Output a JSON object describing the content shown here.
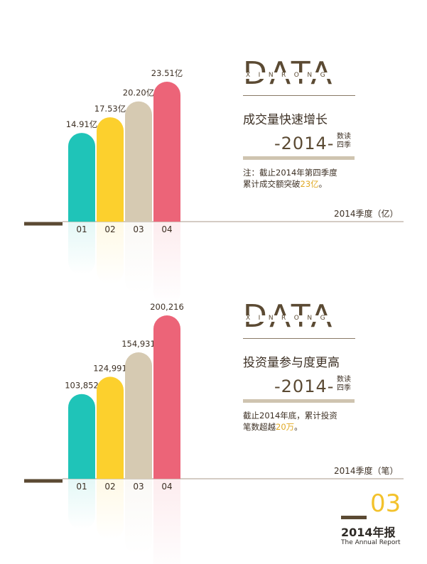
{
  "colors": {
    "teal": "#1fc4b8",
    "yellow": "#fcd02d",
    "beige": "#d6cab2",
    "pink": "#ec6478",
    "brown": "#5b4a33",
    "highlight": "#e0a924"
  },
  "chart_data": [
    {
      "type": "bar",
      "categories": [
        "01",
        "02",
        "03",
        "04"
      ],
      "values": [
        14.91,
        17.53,
        20.2,
        23.51
      ],
      "value_labels": [
        "14.91亿",
        "17.53亿",
        "20.20亿",
        "23.51亿"
      ],
      "title": "成交量快速增长",
      "xlabel": "2014季度（亿）",
      "bar_colors": [
        "#1fc4b8",
        "#fcd02d",
        "#d6cab2",
        "#ec6478"
      ],
      "reflection": true
    },
    {
      "type": "bar",
      "categories": [
        "01",
        "02",
        "03",
        "04"
      ],
      "values": [
        103852,
        124991,
        154931,
        200216
      ],
      "value_labels": [
        "103,852",
        "124,991",
        "154,931",
        "200,216"
      ],
      "title": "投资量参与度更高",
      "xlabel": "2014季度（笔）",
      "bar_colors": [
        "#1fc4b8",
        "#fcd02d",
        "#d6cab2",
        "#ec6478"
      ],
      "reflection": true
    }
  ],
  "panel1": {
    "data_word": "DATA",
    "spaced_word": "XINRONG",
    "headline": "成交量快速增长",
    "year": "-2014-",
    "tag_line1": "数读",
    "tag_line2": "四季",
    "note_line1": "注：截止2014年第四季度",
    "note_line2_prefix": "累计成交额突破",
    "note_highlight": "23亿",
    "note_suffix": "。",
    "axis_caption": "2014季度（亿）"
  },
  "panel2": {
    "data_word": "DATA",
    "spaced_word": "XINRONG",
    "headline": "投资量参与度更高",
    "year": "-2014-",
    "tag_line1": "数读",
    "tag_line2": "四季",
    "note_line1": "截止2014年底，累计投资",
    "note_line2_prefix": "笔数超越",
    "note_highlight": "20万",
    "note_suffix": "。",
    "axis_caption": "2014季度（笔）"
  },
  "badge": {
    "page_number": "03",
    "title": "2014年报",
    "subtitle": "The Annual Report"
  }
}
